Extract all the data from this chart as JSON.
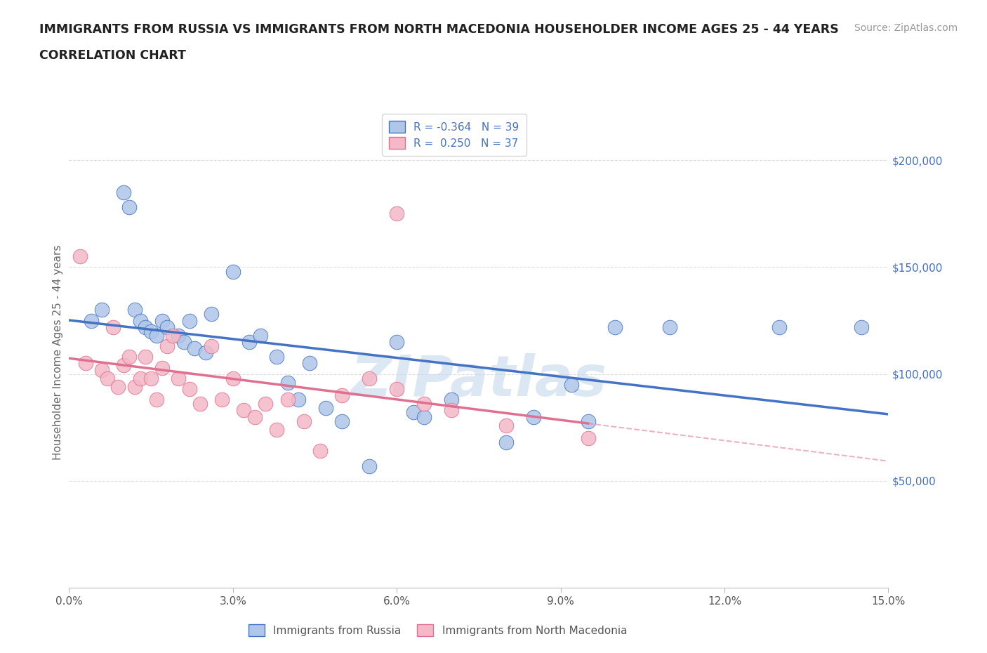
{
  "title_line1": "IMMIGRANTS FROM RUSSIA VS IMMIGRANTS FROM NORTH MACEDONIA HOUSEHOLDER INCOME AGES 25 - 44 YEARS",
  "title_line2": "CORRELATION CHART",
  "source_text": "Source: ZipAtlas.com",
  "ylabel": "Householder Income Ages 25 - 44 years",
  "xmin": 0.0,
  "xmax": 0.15,
  "ymin": 0,
  "ymax": 220000,
  "watermark": "ZIPatlas",
  "legend_russia": "Immigrants from Russia",
  "legend_macedonia": "Immigrants from North Macedonia",
  "R_russia": -0.364,
  "N_russia": 39,
  "R_macedonia": 0.25,
  "N_macedonia": 37,
  "russia_color": "#aec6e8",
  "russia_line_color": "#4472c4",
  "macedonia_color": "#f4b8c8",
  "macedonia_line_color": "#e07090",
  "russia_x": [
    0.004,
    0.006,
    0.01,
    0.011,
    0.012,
    0.013,
    0.014,
    0.015,
    0.016,
    0.017,
    0.018,
    0.02,
    0.021,
    0.022,
    0.023,
    0.025,
    0.026,
    0.03,
    0.033,
    0.035,
    0.038,
    0.04,
    0.042,
    0.044,
    0.047,
    0.05,
    0.055,
    0.06,
    0.063,
    0.065,
    0.07,
    0.08,
    0.085,
    0.092,
    0.095,
    0.1,
    0.11,
    0.13,
    0.145
  ],
  "russia_y": [
    125000,
    130000,
    185000,
    178000,
    130000,
    125000,
    122000,
    120000,
    118000,
    125000,
    122000,
    118000,
    115000,
    125000,
    112000,
    110000,
    128000,
    148000,
    115000,
    118000,
    108000,
    96000,
    88000,
    105000,
    84000,
    78000,
    57000,
    115000,
    82000,
    80000,
    88000,
    68000,
    80000,
    95000,
    78000,
    122000,
    122000,
    122000,
    122000
  ],
  "macedonia_x": [
    0.002,
    0.003,
    0.006,
    0.007,
    0.008,
    0.009,
    0.01,
    0.011,
    0.012,
    0.013,
    0.014,
    0.015,
    0.016,
    0.017,
    0.018,
    0.019,
    0.02,
    0.022,
    0.024,
    0.026,
    0.028,
    0.03,
    0.032,
    0.034,
    0.036,
    0.038,
    0.04,
    0.043,
    0.046,
    0.05,
    0.055,
    0.06,
    0.065,
    0.07,
    0.08,
    0.095,
    0.06
  ],
  "macedonia_y": [
    155000,
    105000,
    102000,
    98000,
    122000,
    94000,
    104000,
    108000,
    94000,
    98000,
    108000,
    98000,
    88000,
    103000,
    113000,
    118000,
    98000,
    93000,
    86000,
    113000,
    88000,
    98000,
    83000,
    80000,
    86000,
    74000,
    88000,
    78000,
    64000,
    90000,
    98000,
    93000,
    86000,
    83000,
    76000,
    70000,
    175000
  ],
  "ytick_labels": [
    "$50,000",
    "$100,000",
    "$150,000",
    "$200,000"
  ],
  "ytick_values": [
    50000,
    100000,
    150000,
    200000
  ],
  "xtick_labels": [
    "0.0%",
    "3.0%",
    "6.0%",
    "9.0%",
    "12.0%",
    "15.0%"
  ],
  "xtick_values": [
    0.0,
    0.03,
    0.06,
    0.09,
    0.12,
    0.15
  ],
  "grid_color": "#dddddd",
  "background_color": "#ffffff",
  "title_fontsize": 12.5,
  "axis_label_fontsize": 11,
  "tick_fontsize": 11,
  "legend_fontsize": 11,
  "source_fontsize": 10
}
